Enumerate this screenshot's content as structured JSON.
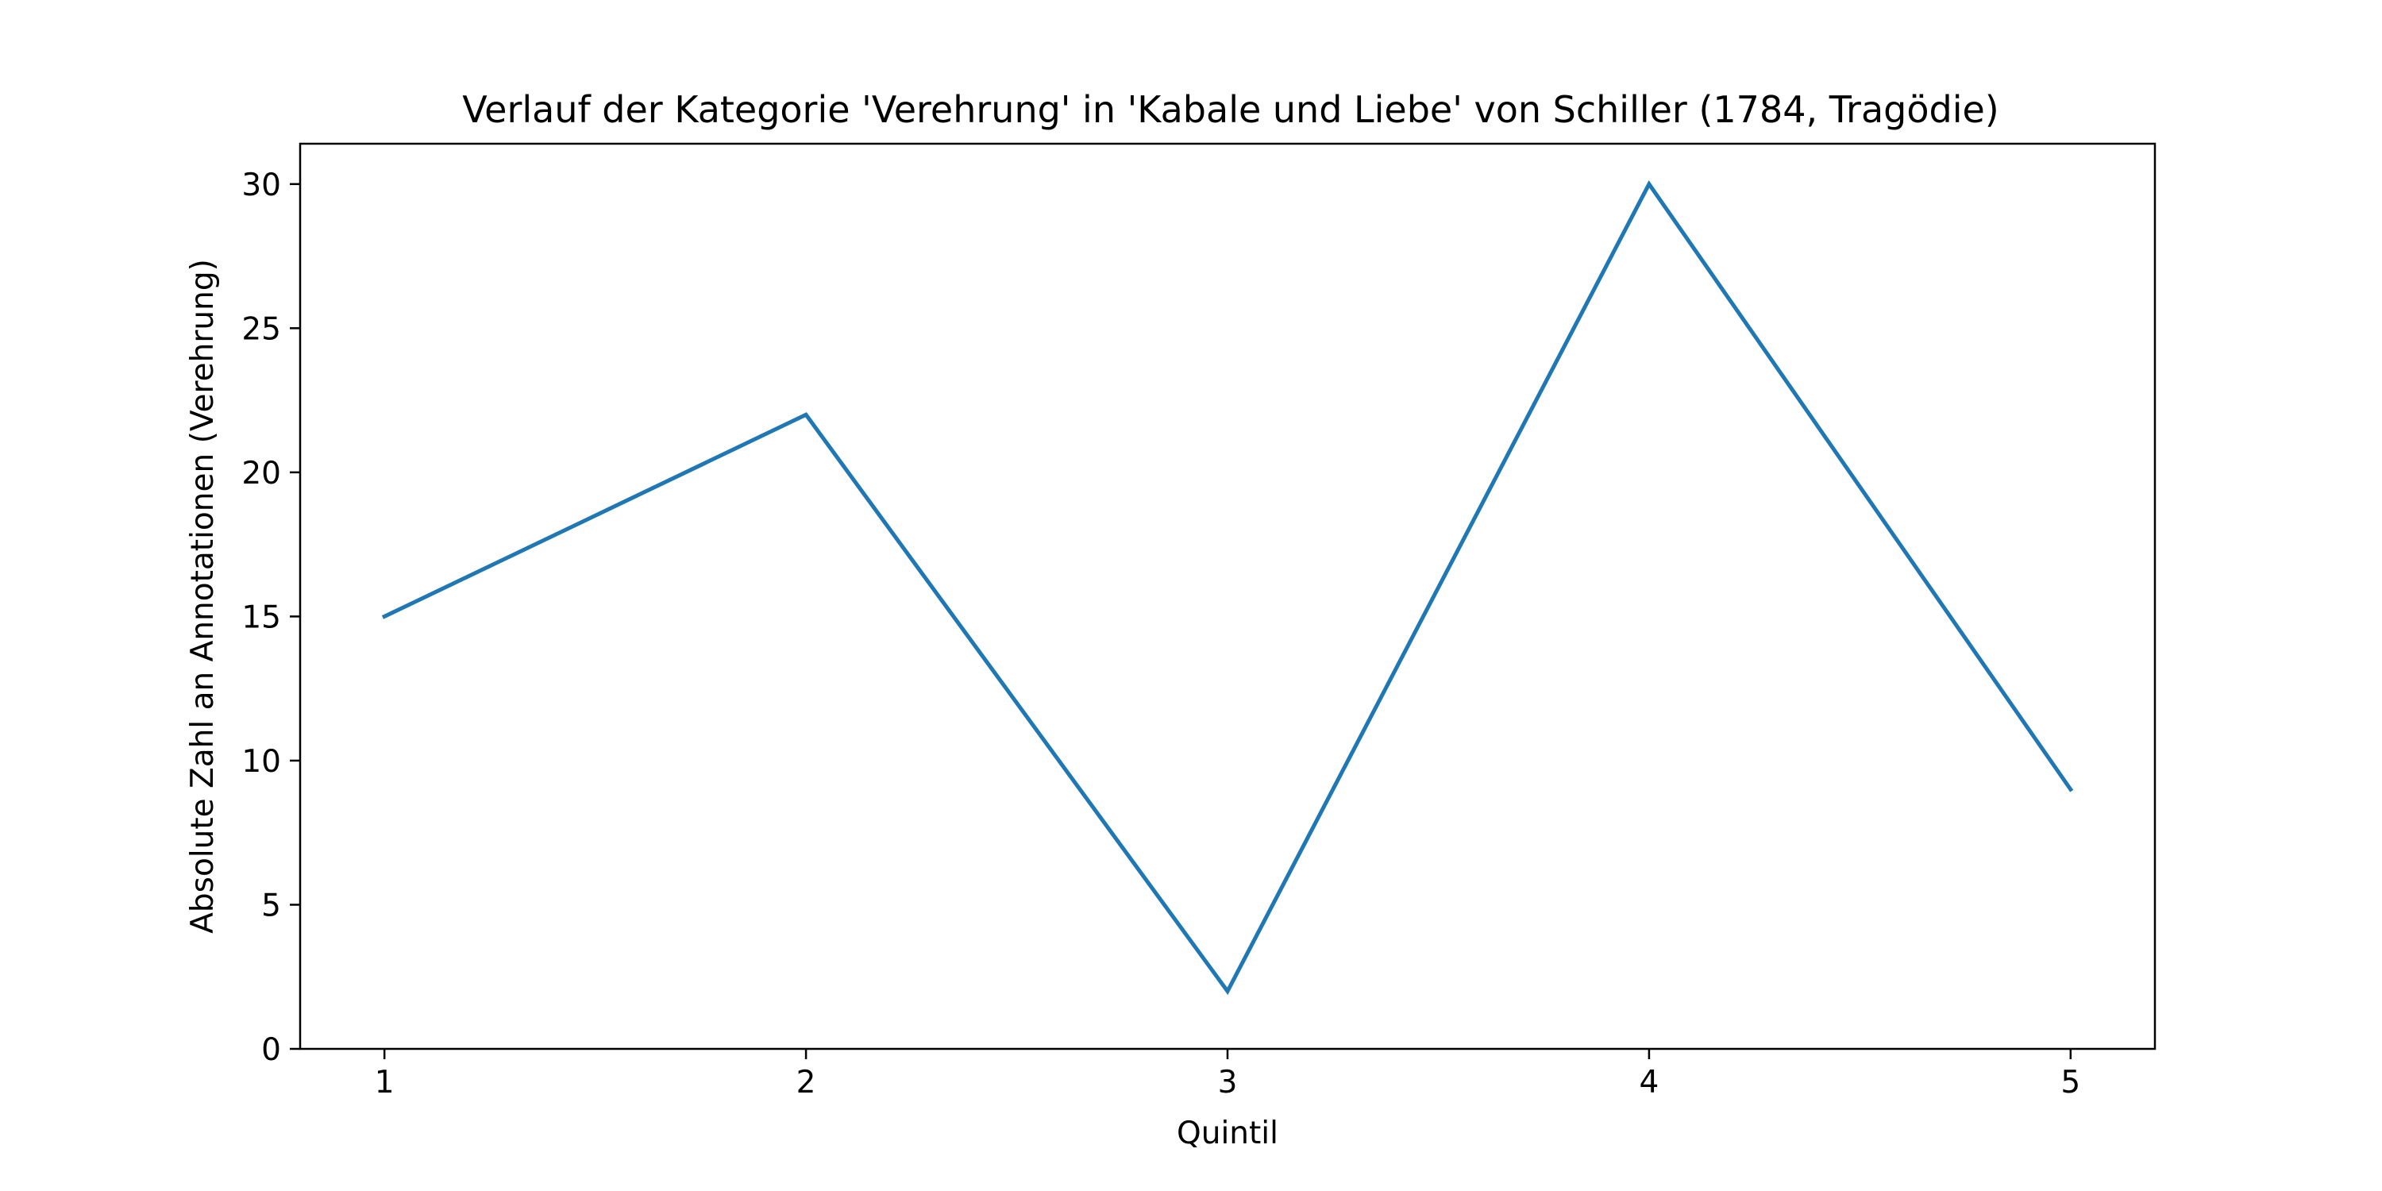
{
  "chart_data": {
    "type": "line",
    "title": "Verlauf der Kategorie 'Verehrung' in 'Kabale und Liebe' von Schiller (1784, Tragödie)",
    "xlabel": "Quintil",
    "ylabel": "Absolute Zahl an Annotationen (Verehrung)",
    "x": [
      1,
      2,
      3,
      4,
      5
    ],
    "x_ticks": [
      "1",
      "2",
      "3",
      "4",
      "5"
    ],
    "xlim": [
      0.8,
      5.2
    ],
    "y_ticks": [
      "0",
      "5",
      "10",
      "15",
      "20",
      "25",
      "30"
    ],
    "ylim": [
      0,
      31.4
    ],
    "series": [
      {
        "values": [
          15,
          22,
          2,
          30,
          9
        ],
        "color": "#1f77b4"
      }
    ],
    "grid": false,
    "legend": "none"
  }
}
